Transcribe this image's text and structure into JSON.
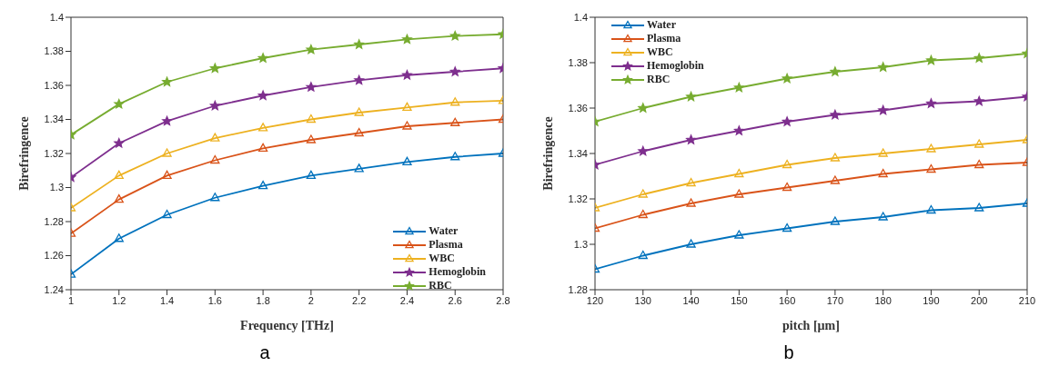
{
  "chart_data": [
    {
      "type": "line",
      "xlabel": "Frequency [THz]",
      "ylabel": "Birefringence",
      "annotations": [
        "a"
      ],
      "x": [
        1,
        1.2,
        1.4,
        1.6,
        1.8,
        2,
        2.2,
        2.4,
        2.6,
        2.8
      ],
      "xlim": [
        1,
        2.8
      ],
      "xticks": [
        1,
        1.2,
        1.4,
        1.6,
        1.8,
        2,
        2.2,
        2.4,
        2.6,
        2.8
      ],
      "ylim": [
        1.24,
        1.4
      ],
      "yticks": [
        1.24,
        1.26,
        1.28,
        1.3,
        1.32,
        1.34,
        1.36,
        1.38,
        1.4
      ],
      "grid": false,
      "legend": "bottom right",
      "series": [
        {
          "name": "Water",
          "color": "#0072bd",
          "marker": "triangle",
          "values": [
            1.249,
            1.27,
            1.284,
            1.294,
            1.301,
            1.307,
            1.311,
            1.315,
            1.318,
            1.32
          ]
        },
        {
          "name": "Plasma",
          "color": "#d95319",
          "marker": "triangle",
          "values": [
            1.273,
            1.293,
            1.307,
            1.316,
            1.323,
            1.328,
            1.332,
            1.336,
            1.338,
            1.34
          ]
        },
        {
          "name": "WBC",
          "color": "#edb120",
          "marker": "triangle",
          "values": [
            1.288,
            1.307,
            1.32,
            1.329,
            1.335,
            1.34,
            1.344,
            1.347,
            1.35,
            1.351
          ]
        },
        {
          "name": "Hemoglobin",
          "color": "#7e2f8e",
          "marker": "star",
          "values": [
            1.306,
            1.326,
            1.339,
            1.348,
            1.354,
            1.359,
            1.363,
            1.366,
            1.368,
            1.37
          ]
        },
        {
          "name": "RBC",
          "color": "#77ac30",
          "marker": "star",
          "values": [
            1.331,
            1.349,
            1.362,
            1.37,
            1.376,
            1.381,
            1.384,
            1.387,
            1.389,
            1.39
          ]
        }
      ]
    },
    {
      "type": "line",
      "xlabel": "pitch [µm]",
      "ylabel": "Birefringence",
      "annotations": [
        "b"
      ],
      "x": [
        120,
        130,
        140,
        150,
        160,
        170,
        180,
        190,
        200,
        210
      ],
      "xlim": [
        120,
        210
      ],
      "xticks": [
        120,
        130,
        140,
        150,
        160,
        170,
        180,
        190,
        200,
        210
      ],
      "ylim": [
        1.28,
        1.4
      ],
      "yticks": [
        1.28,
        1.3,
        1.32,
        1.34,
        1.36,
        1.38,
        1.4
      ],
      "grid": false,
      "legend": "top left",
      "series": [
        {
          "name": "Water",
          "color": "#0072bd",
          "marker": "triangle",
          "values": [
            1.289,
            1.295,
            1.3,
            1.304,
            1.307,
            1.31,
            1.312,
            1.315,
            1.316,
            1.318
          ]
        },
        {
          "name": "Plasma",
          "color": "#d95319",
          "marker": "triangle",
          "values": [
            1.307,
            1.313,
            1.318,
            1.322,
            1.325,
            1.328,
            1.331,
            1.333,
            1.335,
            1.336
          ]
        },
        {
          "name": "WBC",
          "color": "#edb120",
          "marker": "triangle",
          "values": [
            1.316,
            1.322,
            1.327,
            1.331,
            1.335,
            1.338,
            1.34,
            1.342,
            1.344,
            1.346
          ]
        },
        {
          "name": "Hemoglobin",
          "color": "#7e2f8e",
          "marker": "star",
          "values": [
            1.335,
            1.341,
            1.346,
            1.35,
            1.354,
            1.357,
            1.359,
            1.362,
            1.363,
            1.365
          ]
        },
        {
          "name": "RBC",
          "color": "#77ac30",
          "marker": "star",
          "values": [
            1.354,
            1.36,
            1.365,
            1.369,
            1.373,
            1.376,
            1.378,
            1.381,
            1.382,
            1.384
          ]
        }
      ]
    }
  ]
}
